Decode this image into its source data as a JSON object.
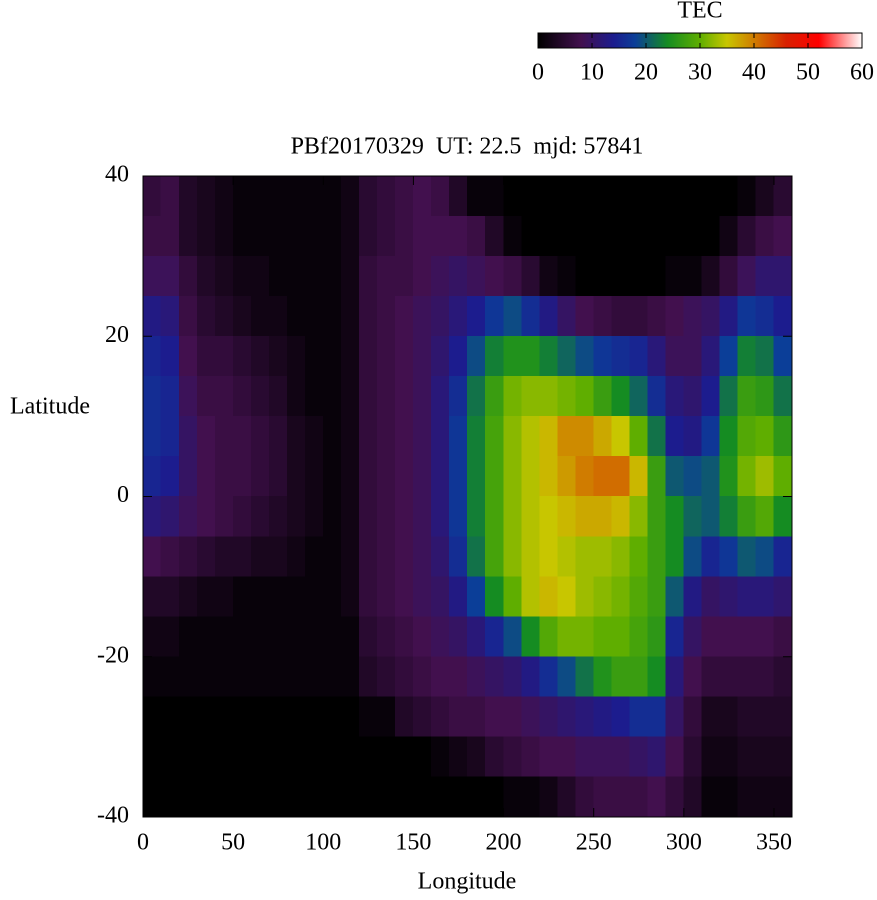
{
  "chart_data": {
    "type": "heatmap",
    "title": "PBf20170329  UT: 22.5  mjd: 57841",
    "x_label": "Longitude",
    "y_label": "Latitude",
    "xlim": [
      0,
      360
    ],
    "xticks": [
      0,
      50,
      100,
      150,
      200,
      250,
      300,
      350
    ],
    "ylim": [
      -40,
      40
    ],
    "yticks": [
      -40,
      -20,
      0,
      20,
      40
    ],
    "x": [
      5,
      15,
      25,
      35,
      45,
      55,
      65,
      75,
      85,
      95,
      105,
      115,
      125,
      135,
      145,
      155,
      165,
      175,
      185,
      195,
      205,
      215,
      225,
      235,
      245,
      255,
      265,
      275,
      285,
      295,
      305,
      315,
      325,
      335,
      345,
      355
    ],
    "y": [
      37.5,
      32.5,
      27.5,
      22.5,
      17.5,
      12.5,
      7.5,
      2.5,
      -2.5,
      -7.5,
      -12.5,
      -17.5,
      -22.5,
      -27.5,
      -32.5,
      -37.5
    ],
    "z": [
      [
        6,
        7,
        4,
        3,
        2,
        1,
        1,
        1,
        1,
        1,
        1,
        2,
        5,
        6,
        7,
        8,
        7,
        4,
        1,
        1,
        0,
        0,
        0,
        0,
        0,
        0,
        0,
        0,
        0,
        0,
        0,
        0,
        0,
        1,
        3,
        5
      ],
      [
        7,
        7,
        4,
        3,
        2,
        1,
        1,
        1,
        1,
        1,
        1,
        2,
        5,
        6,
        7,
        8,
        8,
        8,
        7,
        4,
        1,
        0,
        0,
        0,
        0,
        0,
        0,
        0,
        0,
        0,
        0,
        0,
        2,
        5,
        7,
        8
      ],
      [
        9,
        9,
        6,
        4,
        3,
        2,
        2,
        1,
        1,
        1,
        1,
        2,
        6,
        7,
        7,
        8,
        9,
        10,
        9,
        8,
        7,
        5,
        2,
        1,
        0,
        0,
        0,
        0,
        0,
        1,
        1,
        3,
        6,
        9,
        11,
        11
      ],
      [
        13,
        12,
        7,
        5,
        4,
        3,
        2,
        2,
        1,
        1,
        1,
        2,
        6,
        7,
        8,
        9,
        10,
        12,
        14,
        17,
        19,
        16,
        13,
        10,
        8,
        7,
        6,
        6,
        7,
        8,
        9,
        10,
        13,
        17,
        16,
        14
      ],
      [
        15,
        14,
        8,
        6,
        6,
        5,
        4,
        3,
        2,
        1,
        1,
        2,
        6,
        7,
        8,
        9,
        11,
        14,
        19,
        23,
        25,
        25,
        23,
        21,
        19,
        17,
        16,
        15,
        12,
        9,
        9,
        12,
        18,
        23,
        22,
        18
      ],
      [
        16,
        15,
        9,
        7,
        7,
        6,
        5,
        4,
        2,
        1,
        1,
        2,
        6,
        7,
        8,
        9,
        12,
        16,
        22,
        27,
        31,
        32,
        32,
        31,
        30,
        27,
        24,
        21,
        16,
        12,
        11,
        14,
        22,
        27,
        26,
        22
      ],
      [
        16,
        15,
        10,
        8,
        7,
        7,
        6,
        5,
        3,
        2,
        1,
        2,
        6,
        7,
        8,
        9,
        12,
        17,
        23,
        28,
        32,
        34,
        36,
        39,
        39,
        37,
        35,
        30,
        22,
        14,
        13,
        17,
        24,
        29,
        30,
        26
      ],
      [
        15,
        14,
        10,
        8,
        7,
        7,
        6,
        5,
        3,
        2,
        1,
        2,
        6,
        7,
        8,
        9,
        12,
        17,
        23,
        28,
        32,
        34,
        36,
        38,
        40,
        41,
        41,
        36,
        27,
        20,
        19,
        20,
        25,
        31,
        33,
        30
      ],
      [
        12,
        11,
        9,
        8,
        7,
        6,
        5,
        4,
        3,
        2,
        1,
        2,
        6,
        7,
        8,
        9,
        12,
        17,
        23,
        28,
        32,
        34,
        35,
        36,
        37,
        37,
        36,
        32,
        27,
        24,
        21,
        20,
        23,
        27,
        29,
        24
      ],
      [
        8,
        7,
        6,
        5,
        4,
        4,
        3,
        3,
        2,
        1,
        1,
        2,
        6,
        7,
        8,
        9,
        11,
        16,
        22,
        28,
        32,
        34,
        35,
        34,
        33,
        33,
        32,
        30,
        27,
        24,
        19,
        15,
        17,
        20,
        19,
        15
      ],
      [
        4,
        4,
        3,
        2,
        2,
        1,
        1,
        1,
        1,
        1,
        1,
        2,
        6,
        7,
        8,
        9,
        10,
        13,
        18,
        24,
        30,
        34,
        36,
        35,
        33,
        32,
        31,
        29,
        27,
        20,
        13,
        10,
        11,
        12,
        12,
        11
      ],
      [
        2,
        2,
        1,
        1,
        1,
        1,
        1,
        1,
        1,
        1,
        1,
        1,
        5,
        6,
        7,
        8,
        9,
        10,
        12,
        15,
        19,
        24,
        29,
        31,
        31,
        30,
        30,
        28,
        26,
        15,
        10,
        8,
        8,
        8,
        8,
        7
      ],
      [
        1,
        1,
        1,
        1,
        1,
        1,
        1,
        1,
        1,
        1,
        1,
        1,
        4,
        5,
        6,
        7,
        8,
        8,
        9,
        10,
        11,
        13,
        16,
        19,
        22,
        25,
        27,
        27,
        24,
        12,
        8,
        6,
        6,
        6,
        6,
        5
      ],
      [
        0,
        0,
        0,
        0,
        0,
        0,
        0,
        0,
        0,
        0,
        0,
        0,
        1,
        1,
        4,
        5,
        6,
        7,
        7,
        8,
        8,
        9,
        10,
        11,
        12,
        13,
        14,
        16,
        16,
        10,
        6,
        3,
        3,
        4,
        4,
        4
      ],
      [
        0,
        0,
        0,
        0,
        0,
        0,
        0,
        0,
        0,
        0,
        0,
        0,
        0,
        0,
        0,
        0,
        1,
        2,
        3,
        5,
        6,
        7,
        8,
        8,
        9,
        9,
        9,
        10,
        11,
        8,
        5,
        2,
        2,
        3,
        3,
        3
      ],
      [
        0,
        0,
        0,
        0,
        0,
        0,
        0,
        0,
        0,
        0,
        0,
        0,
        0,
        0,
        0,
        0,
        0,
        0,
        0,
        0,
        1,
        1,
        2,
        4,
        6,
        7,
        7,
        7,
        8,
        6,
        4,
        1,
        1,
        2,
        2,
        2
      ]
    ],
    "colorbar_title": "TEC",
    "clim": [
      0,
      60
    ],
    "cticks": [
      0,
      10,
      20,
      30,
      40,
      50,
      60
    ],
    "colorscale": [
      [
        0,
        "#000000"
      ],
      [
        8,
        "#42104e"
      ],
      [
        14,
        "#1c1c8e"
      ],
      [
        18,
        "#0b3e98"
      ],
      [
        24,
        "#158c22"
      ],
      [
        30,
        "#5fae00"
      ],
      [
        35,
        "#c8c600"
      ],
      [
        40,
        "#d07c00"
      ],
      [
        46,
        "#d82000"
      ],
      [
        52,
        "#ff0000"
      ],
      [
        60,
        "#ffffff"
      ]
    ],
    "grid": false
  }
}
